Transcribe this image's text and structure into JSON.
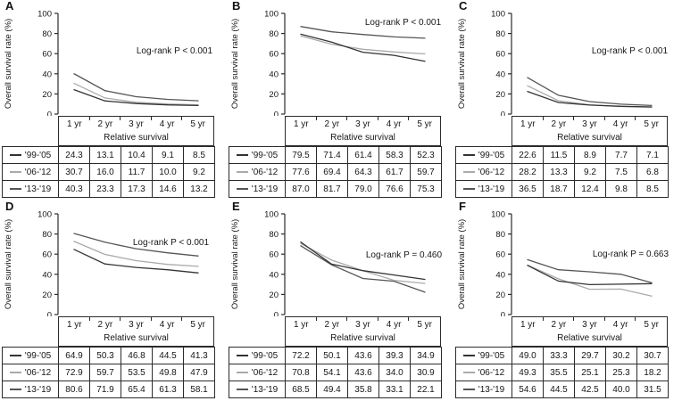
{
  "x_tick_marks": 4,
  "chart_data": [
    {
      "type": "line",
      "panel": "A",
      "annotation": "Log-rank P < 0.001",
      "categories": [
        "1 yr",
        "2 yr",
        "3 yr",
        "4 yr",
        "5 yr"
      ],
      "xlabel": "Relative survival",
      "ylabel": "Overall survival rate (%)",
      "ylim": [
        0,
        100
      ],
      "yticks": [
        0,
        20,
        40,
        60,
        80,
        100
      ],
      "series": [
        {
          "name": "'99-'05",
          "color": "#333333",
          "values": [
            "24.3",
            "13.1",
            "10.4",
            "9.1",
            "8.5"
          ]
        },
        {
          "name": "'06-'12",
          "color": "#aaaaaa",
          "values": [
            "30.7",
            "16.0",
            "11.7",
            "10.0",
            "9.2"
          ]
        },
        {
          "name": "'13-'19",
          "color": "#555555",
          "values": [
            "40.3",
            "23.3",
            "17.3",
            "14.6",
            "13.2"
          ]
        }
      ]
    },
    {
      "type": "line",
      "panel": "B",
      "annotation": "Log-rank P < 0.001",
      "categories": [
        "1 yr",
        "2 yr",
        "3 yr",
        "4 yr",
        "5 yr"
      ],
      "xlabel": "Relative survival",
      "ylabel": "Overall survival rate (%)",
      "ylim": [
        0,
        100
      ],
      "yticks": [
        0,
        20,
        40,
        60,
        80,
        100
      ],
      "series": [
        {
          "name": "'99-'05",
          "color": "#333333",
          "values": [
            "79.5",
            "71.4",
            "61.4",
            "58.3",
            "52.3"
          ]
        },
        {
          "name": "'06-'12",
          "color": "#aaaaaa",
          "values": [
            "77.6",
            "69.4",
            "64.3",
            "61.7",
            "59.7"
          ]
        },
        {
          "name": "'13-'19",
          "color": "#555555",
          "values": [
            "87.0",
            "81.7",
            "79.0",
            "76.6",
            "75.3"
          ]
        }
      ]
    },
    {
      "type": "line",
      "panel": "C",
      "annotation": "Log-rank P < 0.001",
      "categories": [
        "1 yr",
        "2 yr",
        "3 yr",
        "4 yr",
        "5 yr"
      ],
      "xlabel": "Relative survival",
      "ylabel": "Overall survival rate (%)",
      "ylim": [
        0,
        100
      ],
      "yticks": [
        0,
        20,
        40,
        60,
        80,
        100
      ],
      "series": [
        {
          "name": "'99-'05",
          "color": "#333333",
          "values": [
            "22.6",
            "11.5",
            "8.9",
            "7.7",
            "7.1"
          ]
        },
        {
          "name": "'06-'12",
          "color": "#aaaaaa",
          "values": [
            "28.2",
            "13.3",
            "9.2",
            "7.5",
            "6.8"
          ]
        },
        {
          "name": "'13-'19",
          "color": "#555555",
          "values": [
            "36.5",
            "18.7",
            "12.4",
            "9.8",
            "8.5"
          ]
        }
      ]
    },
    {
      "type": "line",
      "panel": "D",
      "annotation": "Log-rank P < 0.001",
      "categories": [
        "1 yr",
        "2 yr",
        "3 yr",
        "4 yr",
        "5 yr"
      ],
      "xlabel": "Relative survival",
      "ylabel": "Overall survival rate (%)",
      "ylim": [
        0,
        100
      ],
      "yticks": [
        0,
        20,
        40,
        60,
        80,
        100
      ],
      "series": [
        {
          "name": "'99-'05",
          "color": "#333333",
          "values": [
            "64.9",
            "50.3",
            "46.8",
            "44.5",
            "41.3"
          ]
        },
        {
          "name": "'06-'12",
          "color": "#aaaaaa",
          "values": [
            "72.9",
            "59.7",
            "53.5",
            "49.8",
            "47.9"
          ]
        },
        {
          "name": "'13-'19",
          "color": "#555555",
          "values": [
            "80.6",
            "71.9",
            "65.4",
            "61.3",
            "58.1"
          ]
        }
      ]
    },
    {
      "type": "line",
      "panel": "E",
      "annotation": "Log-rank P = 0.460",
      "categories": [
        "1 yr",
        "2 yr",
        "3 yr",
        "4 yr",
        "5 yr"
      ],
      "xlabel": "Relative survival",
      "ylabel": "Overall survival rate (%)",
      "ylim": [
        0,
        100
      ],
      "yticks": [
        0,
        20,
        40,
        60,
        80,
        100
      ],
      "series": [
        {
          "name": "'99-'05",
          "color": "#333333",
          "values": [
            "72.2",
            "50.1",
            "43.6",
            "39.3",
            "34.9"
          ]
        },
        {
          "name": "'06-'12",
          "color": "#aaaaaa",
          "values": [
            "70.8",
            "54.1",
            "43.6",
            "34.0",
            "30.9"
          ]
        },
        {
          "name": "'13-'19",
          "color": "#555555",
          "values": [
            "68.5",
            "49.4",
            "35.8",
            "33.1",
            "22.1"
          ]
        }
      ]
    },
    {
      "type": "line",
      "panel": "F",
      "annotation": "Log-rank P = 0.663",
      "categories": [
        "1 yr",
        "2 yr",
        "3 yr",
        "4 yr",
        "5 yr"
      ],
      "xlabel": "Relative survival",
      "ylabel": "Overall survival rate (%)",
      "ylim": [
        0,
        100
      ],
      "yticks": [
        0,
        20,
        40,
        60,
        80,
        100
      ],
      "series": [
        {
          "name": "'99-'05",
          "color": "#333333",
          "values": [
            "49.0",
            "33.3",
            "29.7",
            "30.2",
            "30.7"
          ]
        },
        {
          "name": "'06-'12",
          "color": "#aaaaaa",
          "values": [
            "49.3",
            "35.5",
            "25.1",
            "25.3",
            "18.2"
          ]
        },
        {
          "name": "'13-'19",
          "color": "#555555",
          "values": [
            "54.6",
            "44.5",
            "42.5",
            "40.0",
            "31.5"
          ]
        }
      ]
    }
  ]
}
